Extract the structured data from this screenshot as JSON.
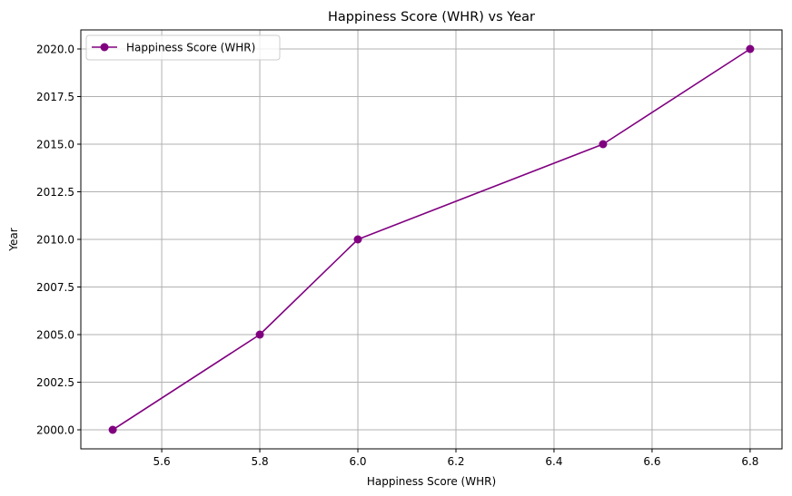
{
  "chart_data": {
    "type": "line",
    "title": "Happiness Score (WHR) vs Year",
    "xlabel": "Happiness Score (WHR)",
    "ylabel": "Year",
    "xlim": [
      5.435,
      6.865
    ],
    "ylim": [
      1999.0,
      2021.0
    ],
    "x_ticks": [
      "5.6",
      "5.8",
      "6.0",
      "6.2",
      "6.4",
      "6.6",
      "6.8"
    ],
    "x_tick_values": [
      5.6,
      5.8,
      6.0,
      6.2,
      6.4,
      6.6,
      6.8
    ],
    "y_ticks": [
      "2000.0",
      "2002.5",
      "2005.0",
      "2007.5",
      "2010.0",
      "2012.5",
      "2015.0",
      "2017.5",
      "2020.0"
    ],
    "y_tick_values": [
      2000.0,
      2002.5,
      2005.0,
      2007.5,
      2010.0,
      2012.5,
      2015.0,
      2017.5,
      2020.0
    ],
    "grid": true,
    "legend_position": "top-left",
    "series": [
      {
        "name": "Happiness Score (WHR)",
        "color": "#800080",
        "marker": "circle",
        "x": [
          5.5,
          5.8,
          6.0,
          6.5,
          6.8
        ],
        "y": [
          2000,
          2005,
          2010,
          2015,
          2020
        ]
      }
    ]
  }
}
